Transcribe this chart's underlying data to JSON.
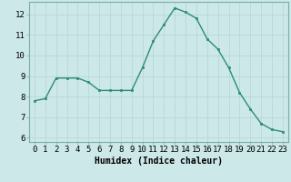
{
  "x": [
    0,
    1,
    2,
    3,
    4,
    5,
    6,
    7,
    8,
    9,
    10,
    11,
    12,
    13,
    14,
    15,
    16,
    17,
    18,
    19,
    20,
    21,
    22,
    23
  ],
  "y": [
    7.8,
    7.9,
    8.9,
    8.9,
    8.9,
    8.7,
    8.3,
    8.3,
    8.3,
    8.3,
    9.4,
    10.7,
    11.5,
    12.3,
    12.1,
    11.8,
    10.8,
    10.3,
    9.4,
    8.2,
    7.4,
    6.7,
    6.4,
    6.3
  ],
  "line_color": "#2e8b7a",
  "marker_color": "#2e8b7a",
  "bg_color": "#cce8e8",
  "grid_color": "#b8d8d8",
  "xlabel": "Humidex (Indice chaleur)",
  "xlim": [
    -0.5,
    23.5
  ],
  "ylim": [
    5.8,
    12.6
  ],
  "yticks": [
    6,
    7,
    8,
    9,
    10,
    11,
    12
  ],
  "xticks": [
    0,
    1,
    2,
    3,
    4,
    5,
    6,
    7,
    8,
    9,
    10,
    11,
    12,
    13,
    14,
    15,
    16,
    17,
    18,
    19,
    20,
    21,
    22,
    23
  ],
  "xlabel_fontsize": 7,
  "tick_fontsize": 6.5
}
